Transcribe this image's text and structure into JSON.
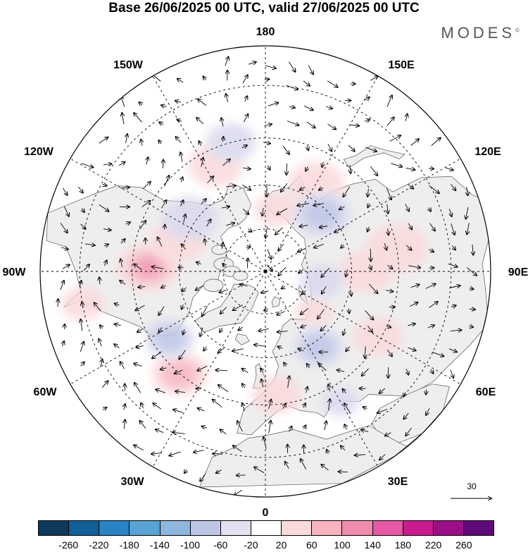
{
  "title": "Base 26/06/2025 00 UTC, valid 27/06/2025 00 UTC",
  "brand": "MODES",
  "brand_mark": "©",
  "longitude_labels": {
    "lon_180": "180",
    "lon_150e": "150E",
    "lon_120e": "120E",
    "lon_90e": "90E",
    "lon_60e": "60E",
    "lon_30e": "30E",
    "lon_0": "0",
    "lon_30w": "30W",
    "lon_60w": "60W",
    "lon_90w": "90W",
    "lon_120w": "120W",
    "lon_150w": "150W"
  },
  "reference_vector": "30",
  "colorbar": {
    "colors": [
      "#0d3a5c",
      "#11609a",
      "#2a83c4",
      "#5aa2d3",
      "#8fb6df",
      "#bcc5e6",
      "#e2e1f1",
      "#ffffff",
      "#fbd9dc",
      "#f7b4bf",
      "#f08bb0",
      "#e558a4",
      "#c91b8e",
      "#9a0f86",
      "#5e0a7a"
    ],
    "ticks": [
      "-260",
      "-220",
      "-180",
      "-140",
      "-100",
      "-60",
      "-20",
      "20",
      "60",
      "100",
      "140",
      "180",
      "220",
      "260"
    ]
  },
  "map": {
    "projection": "north-polar-stereographic",
    "land_color": "#eeeeee",
    "ocean_color": "#ffffff",
    "positive_anomalies": [
      {
        "lon": -92,
        "lat": 50,
        "strength": 3,
        "size": 1.0
      },
      {
        "lon": -110,
        "lat": 58,
        "strength": 1,
        "size": 0.9
      },
      {
        "lon": -40,
        "lat": 45,
        "strength": 2,
        "size": 0.9
      },
      {
        "lon": 5,
        "lat": 48,
        "strength": 1,
        "size": 0.8
      },
      {
        "lon": 60,
        "lat": 46,
        "strength": 1,
        "size": 0.8
      },
      {
        "lon": 90,
        "lat": 55,
        "strength": 1,
        "size": 0.9
      },
      {
        "lon": 100,
        "lat": 45,
        "strength": 1,
        "size": 1.0
      },
      {
        "lon": 150,
        "lat": 55,
        "strength": 1,
        "size": 0.9
      },
      {
        "lon": 170,
        "lat": 68,
        "strength": 1,
        "size": 0.7
      },
      {
        "lon": -155,
        "lat": 50,
        "strength": 1,
        "size": 0.9
      },
      {
        "lon": -80,
        "lat": 30,
        "strength": 1,
        "size": 0.7
      },
      {
        "lon": 50,
        "lat": 68,
        "strength": 1,
        "size": 0.6
      }
    ],
    "negative_anomalies": [
      {
        "lon": 135,
        "lat": 62,
        "strength": 2,
        "size": 0.9
      },
      {
        "lon": 35,
        "lat": 58,
        "strength": 2,
        "size": 0.8
      },
      {
        "lon": -55,
        "lat": 50,
        "strength": 2,
        "size": 0.8
      },
      {
        "lon": -125,
        "lat": 58,
        "strength": 1,
        "size": 0.9
      },
      {
        "lon": -165,
        "lat": 45,
        "strength": 1,
        "size": 0.8
      },
      {
        "lon": 80,
        "lat": 70,
        "strength": 1,
        "size": 0.7
      },
      {
        "lon": 30,
        "lat": 40,
        "strength": 1,
        "size": 0.6
      }
    ]
  }
}
